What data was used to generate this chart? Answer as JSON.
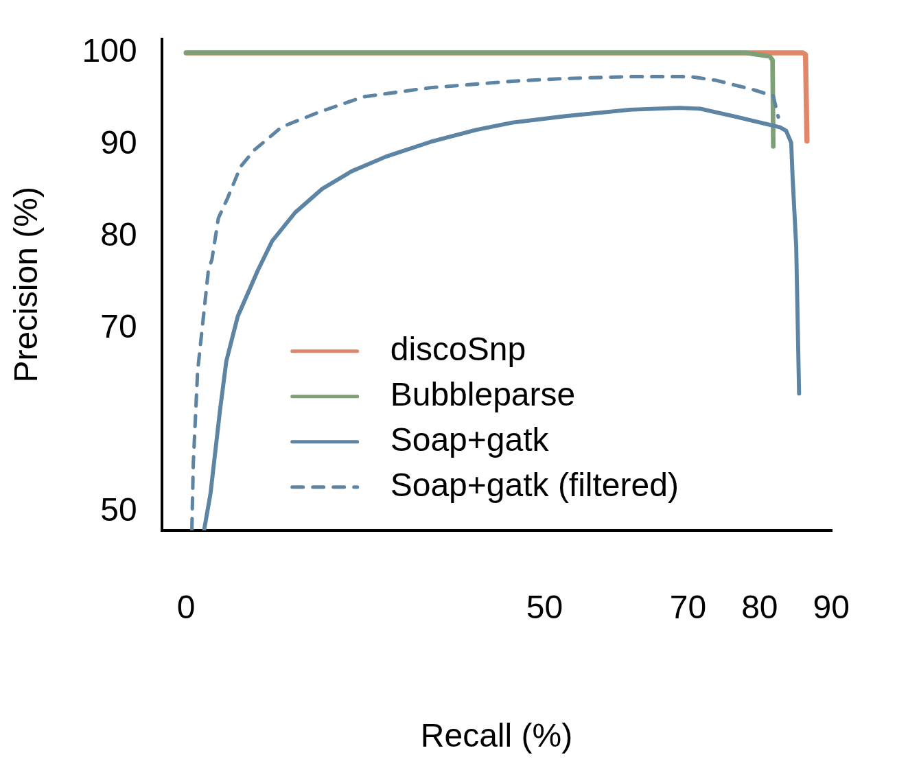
{
  "chart_data": {
    "type": "line",
    "xlabel": "Recall (%)",
    "ylabel": "Precision (%)",
    "xlim": [
      -3.4,
      90
    ],
    "xticks": [
      0,
      50,
      70,
      80,
      90
    ],
    "ylim": [
      48,
      101.5
    ],
    "yticks": [
      50,
      70,
      80,
      90,
      100
    ],
    "grid": false,
    "legend": "bottom",
    "marker": "none",
    "series": [
      {
        "name": "discoSnp",
        "color": "#e0876a",
        "line_style": "solid",
        "x": [
          0,
          78,
          86,
          86.4,
          86.6
        ],
        "values": [
          100,
          100,
          100,
          99.8,
          90.4
        ]
      },
      {
        "name": "Bubbleparse",
        "color": "#7f9f77",
        "line_style": "solid",
        "x": [
          0,
          78,
          81.4,
          81.8,
          81.9
        ],
        "values": [
          100,
          100,
          99.6,
          99.2,
          89.8
        ]
      },
      {
        "name": "Soap+gatk",
        "color": "#5e84a4",
        "line_style": "solid",
        "x": [
          2.5,
          3.4,
          4.7,
          5.6,
          7.2,
          10,
          12,
          15.2,
          19,
          23.1,
          27.9,
          34.1,
          40.4,
          45.5,
          52.9,
          61.9,
          68.8,
          71.8,
          76.9,
          82.8,
          83.7,
          84.4,
          84.6,
          85.1,
          85.5
        ],
        "values": [
          48,
          52,
          60.9,
          66.4,
          71.3,
          76.3,
          79.5,
          82.6,
          85.2,
          87.1,
          88.7,
          90.3,
          91.6,
          92.4,
          93.1,
          93.8,
          94,
          93.9,
          93,
          91.9,
          91.5,
          90.2,
          86.4,
          78.9,
          62.9
        ]
      },
      {
        "name": "Soap+gatk (filtered)",
        "color": "#5e84a4",
        "line_style": "dashed",
        "x": [
          0.8,
          1,
          1.6,
          2.5,
          3.1,
          3.6,
          4.5,
          5.8,
          7.6,
          9.5,
          13.3,
          18.4,
          24.7,
          34.1,
          45.5,
          52.9,
          61.9,
          70.3,
          73.9,
          79,
          81.9,
          82.6
        ],
        "values": [
          48.1,
          55.3,
          65.3,
          71.9,
          76.3,
          77.5,
          82,
          84.2,
          87.6,
          89.4,
          91.9,
          93.5,
          95.2,
          96.2,
          96.9,
          97.2,
          97.4,
          97.4,
          97,
          96,
          95.3,
          93
        ]
      }
    ]
  }
}
